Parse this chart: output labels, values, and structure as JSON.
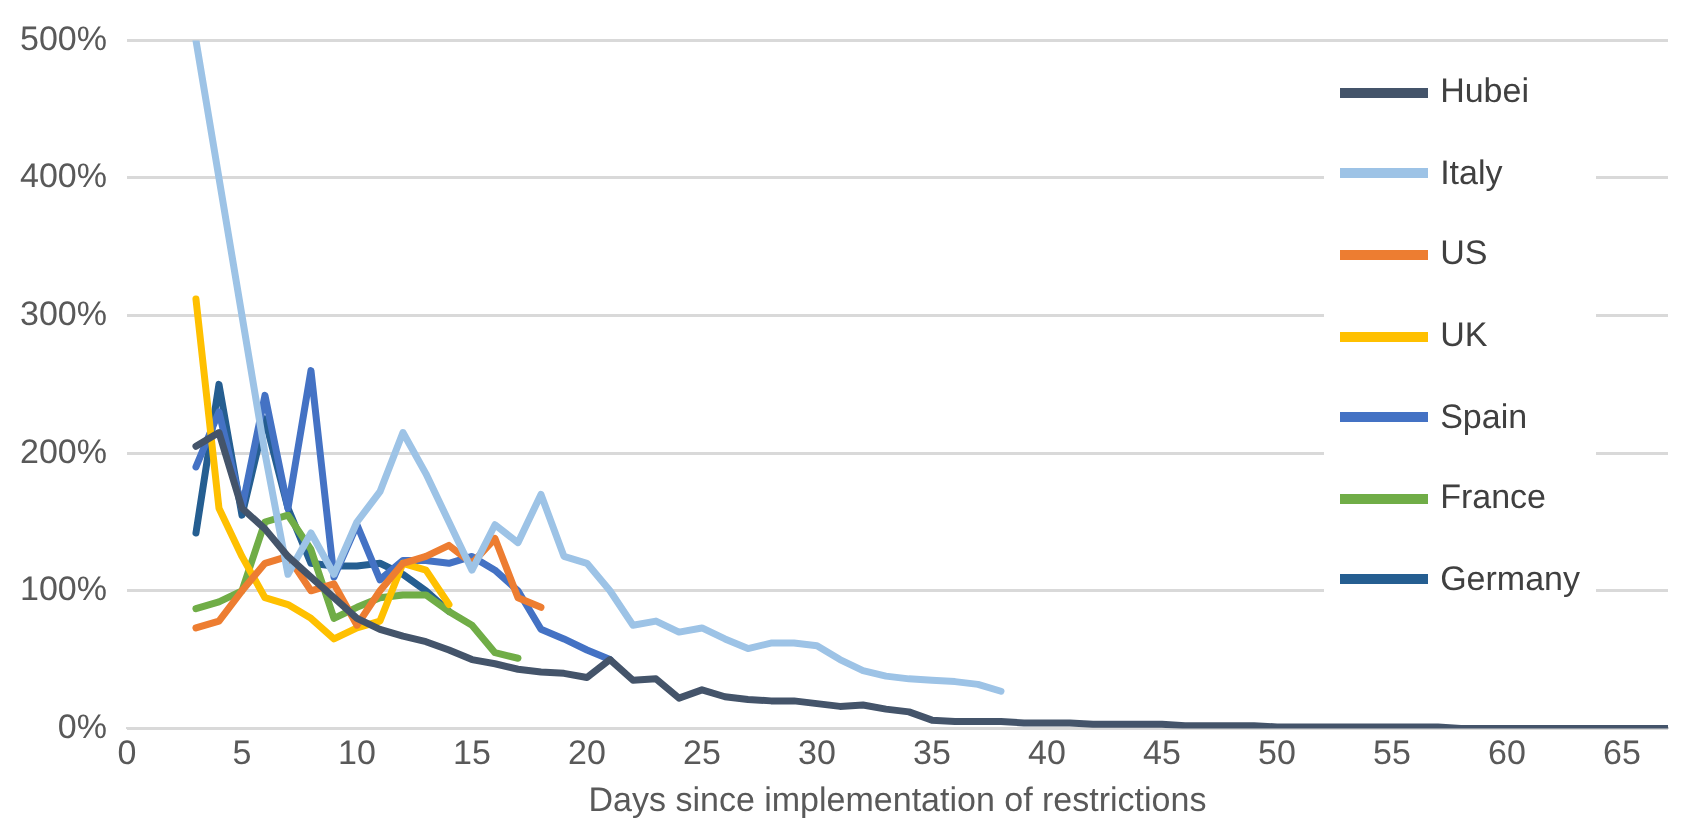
{
  "chart_data": {
    "type": "line",
    "xlabel": "Days since implementation of restrictions",
    "xlim": [
      0,
      67
    ],
    "xticks": [
      0,
      5,
      10,
      15,
      20,
      25,
      30,
      35,
      40,
      45,
      50,
      55,
      60,
      65
    ],
    "ylim": [
      0,
      500
    ],
    "yticks": [
      {
        "value": 0,
        "label": "0%"
      },
      {
        "value": 100,
        "label": "100%"
      },
      {
        "value": 200,
        "label": "200%"
      },
      {
        "value": 300,
        "label": "300%"
      },
      {
        "value": 400,
        "label": "400%"
      },
      {
        "value": 500,
        "label": "500%"
      }
    ],
    "grid": "y",
    "legend": "right",
    "marker": "none",
    "line_style": "solid",
    "series": [
      {
        "name": "Hubei",
        "color": "#44546a",
        "x": [
          3,
          4,
          5,
          6,
          7,
          8,
          9,
          10,
          11,
          12,
          13,
          14,
          15,
          16,
          17,
          18,
          19,
          20,
          21,
          22,
          23,
          24,
          25,
          26,
          27,
          28,
          29,
          30,
          31,
          32,
          33,
          34,
          35,
          36,
          37,
          38,
          39,
          40,
          41,
          42,
          43,
          44,
          45,
          46,
          47,
          48,
          49,
          50,
          51,
          52,
          53,
          54,
          55,
          56,
          57,
          58,
          59,
          60,
          61,
          62,
          63,
          64,
          65,
          66,
          67
        ],
        "values": [
          205,
          215,
          160,
          145,
          125,
          110,
          95,
          80,
          72,
          67,
          63,
          57,
          50,
          47,
          43,
          41,
          40,
          37,
          50,
          35,
          36,
          22,
          28,
          23,
          21,
          20,
          20,
          18,
          16,
          17,
          14,
          12,
          6,
          5,
          5,
          5,
          4,
          4,
          4,
          3,
          3,
          3,
          3,
          2,
          2,
          2,
          2,
          1,
          1,
          1,
          1,
          1,
          1,
          1,
          1,
          0,
          0,
          0,
          0,
          0,
          0,
          0,
          0,
          0,
          0
        ]
      },
      {
        "name": "Italy",
        "color": "#9dc3e6",
        "x": [
          3,
          4,
          5,
          6,
          7,
          8,
          9,
          10,
          11,
          12,
          13,
          14,
          15,
          16,
          17,
          18,
          19,
          20,
          21,
          22,
          23,
          24,
          25,
          26,
          27,
          28,
          29,
          30,
          31,
          32,
          33,
          34,
          35,
          36,
          37,
          38
        ],
        "values": [
          500,
          400,
          300,
          200,
          112,
          142,
          112,
          150,
          172,
          215,
          185,
          150,
          115,
          148,
          135,
          170,
          125,
          120,
          100,
          75,
          78,
          70,
          73,
          65,
          58,
          62,
          62,
          60,
          50,
          42,
          38,
          36,
          35,
          34,
          32,
          27
        ]
      },
      {
        "name": "US",
        "color": "#ed7d31",
        "x": [
          3,
          4,
          5,
          6,
          7,
          8,
          9,
          10,
          11,
          12,
          13,
          14,
          15,
          16,
          17,
          18
        ],
        "values": [
          73,
          78,
          100,
          120,
          125,
          100,
          105,
          75,
          100,
          120,
          125,
          133,
          120,
          138,
          95,
          88
        ]
      },
      {
        "name": "UK",
        "color": "#ffc000",
        "x": [
          3,
          4,
          5,
          6,
          7,
          8,
          9,
          10,
          11,
          12,
          13,
          14
        ],
        "values": [
          312,
          160,
          125,
          95,
          90,
          80,
          65,
          73,
          78,
          120,
          115,
          90
        ]
      },
      {
        "name": "Spain",
        "color": "#4472c4",
        "x": [
          3,
          4,
          5,
          6,
          7,
          8,
          9,
          10,
          11,
          12,
          13,
          14,
          15,
          16,
          17,
          18,
          19,
          20,
          21
        ],
        "values": [
          190,
          230,
          160,
          242,
          160,
          260,
          110,
          148,
          108,
          122,
          122,
          120,
          125,
          115,
          100,
          72,
          65,
          57,
          50
        ]
      },
      {
        "name": "France",
        "color": "#70ad47",
        "x": [
          3,
          4,
          5,
          6,
          7,
          8,
          9,
          10,
          11,
          12,
          13,
          14,
          15,
          16,
          17
        ],
        "values": [
          87,
          92,
          100,
          150,
          155,
          130,
          80,
          88,
          95,
          97,
          97,
          85,
          75,
          55,
          51
        ]
      },
      {
        "name": "Germany",
        "color": "#255e91",
        "x": [
          3,
          4,
          5,
          6,
          7,
          8,
          9,
          10,
          11,
          12,
          13,
          14
        ],
        "values": [
          142,
          250,
          155,
          225,
          160,
          120,
          118,
          118,
          120,
          112,
          100,
          85
        ]
      }
    ]
  }
}
